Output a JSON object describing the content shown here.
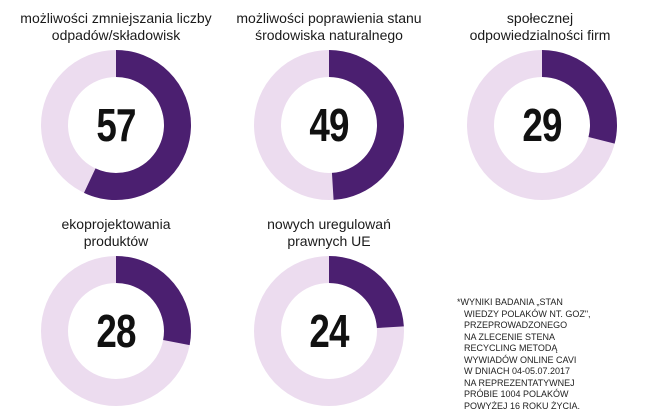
{
  "chart_data": {
    "type": "pie",
    "colors": {
      "filled": "#4b1f70",
      "remaining": "#ecdcef"
    },
    "items": [
      {
        "label_lines": [
          "możliwości zmniejszania liczby",
          "odpadów/składowisk"
        ],
        "value": 57
      },
      {
        "label_lines": [
          "możliwości poprawienia stanu",
          "środowiska naturalnego"
        ],
        "value": 49
      },
      {
        "label_lines": [
          "społecznej",
          "odpowiedzialności firm"
        ],
        "value": 29
      },
      {
        "label_lines": [
          "ekoprojektowania",
          "produktów"
        ],
        "value": 28
      },
      {
        "label_lines": [
          "nowych uregulowań",
          "prawnych UE"
        ],
        "value": 24
      }
    ],
    "scale_max": 100
  },
  "footnote_lines": [
    "*WYNIKI BADANIA „STAN",
    "WIEDZY POLAKÓW NT. GOZ\",",
    "PRZEPROWADZONEGO",
    "NA ZLECENIE STENA",
    "RECYCLING METODĄ",
    "WYWIADÓW ONLINE CAVI",
    "W DNIACH 04-05.07.2017",
    "NA REPREZENTATYWNEJ",
    "PRÓBIE 1004 POLAKÓW",
    "POWYŻEJ 16 ROKU ŻYCIA."
  ]
}
